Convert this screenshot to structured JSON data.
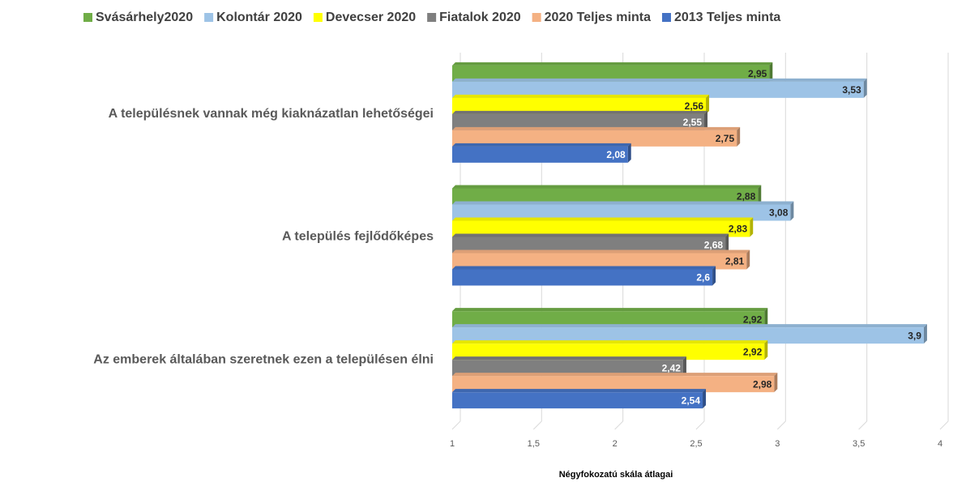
{
  "chart_data": {
    "type": "hbar",
    "categories": [
      "A településnek vannak még kiaknázatlan lehetőségei",
      "A település fejlődőképes",
      "Az emberek általában szeretnek ezen a településen élni"
    ],
    "series": [
      {
        "name": "Svásárhely2020",
        "color": "#70ad47",
        "values": [
          2.95,
          2.88,
          2.92
        ],
        "value_labels": [
          "2,95",
          "2,88",
          "2,92"
        ]
      },
      {
        "name": "Kolontár 2020",
        "color": "#9dc3e6",
        "values": [
          3.53,
          3.08,
          3.9
        ],
        "value_labels": [
          "3,53",
          "3,08",
          "3,9"
        ]
      },
      {
        "name": "Devecser 2020",
        "color": "#ffff00",
        "values": [
          2.56,
          2.83,
          2.92
        ],
        "value_labels": [
          "2,56",
          "2,83",
          "2,92"
        ]
      },
      {
        "name": "Fiatalok 2020",
        "color": "#7f7f7f",
        "values": [
          2.55,
          2.68,
          2.42
        ],
        "value_labels": [
          "2,55",
          "2,68",
          "2,42"
        ]
      },
      {
        "name": "2020 Teljes minta",
        "color": "#f4b183",
        "values": [
          2.75,
          2.81,
          2.98
        ],
        "value_labels": [
          "2,75",
          "2,81",
          "2,98"
        ]
      },
      {
        "name": "2013 Teljes minta",
        "color": "#4472c4",
        "values": [
          2.08,
          2.6,
          2.54
        ],
        "value_labels": [
          "2,08",
          "2,6",
          "2,54"
        ]
      }
    ],
    "xlabel": "Négyfokozatú skála átlagai",
    "xlim": [
      1,
      4
    ],
    "xticks": [
      1,
      {
        "value": 1.5,
        "label": "1,5"
      },
      2,
      {
        "value": 2.5,
        "label": "2,5"
      },
      3,
      {
        "value": 3.5,
        "label": "3,5"
      },
      4
    ],
    "grid": true,
    "legend": "top"
  }
}
